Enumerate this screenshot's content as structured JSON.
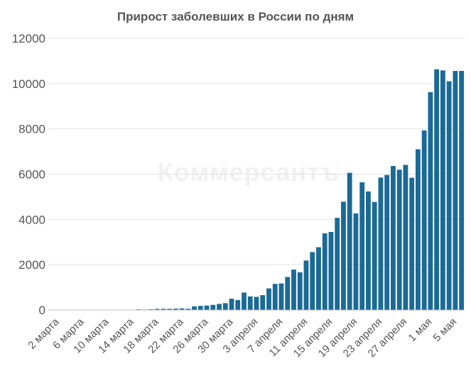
{
  "chart_data": {
    "type": "bar",
    "title": "Прирост заболевших в России по дням",
    "watermark": "Коммерсантъ",
    "xlabel": "",
    "ylabel": "",
    "ylim": [
      0,
      12000
    ],
    "yticks": [
      "0",
      "2000",
      "4000",
      "6000",
      "8000",
      "10000",
      "12000"
    ],
    "grid": true,
    "bar_color": "#1b6a96",
    "x_tick_labels": [
      "2 марта",
      "6 марта",
      "10 марта",
      "14 марта",
      "18 марта",
      "22 марта",
      "26 марта",
      "30 марта",
      "3 апреля",
      "7 апреля",
      "11 апреля",
      "15 апреля",
      "19 апреля",
      "23 апреля",
      "27 апреля",
      "1 мая",
      "5 мая"
    ],
    "categories": [
      "2 марта",
      "3 марта",
      "4 марта",
      "5 марта",
      "6 марта",
      "7 марта",
      "8 марта",
      "9 марта",
      "10 марта",
      "11 марта",
      "12 марта",
      "13 марта",
      "14 марта",
      "15 марта",
      "16 марта",
      "17 марта",
      "18 марта",
      "19 марта",
      "20 марта",
      "21 марта",
      "22 марта",
      "23 марта",
      "24 марта",
      "25 марта",
      "26 марта",
      "27 марта",
      "28 марта",
      "29 марта",
      "30 марта",
      "31 марта",
      "1 апреля",
      "2 апреля",
      "3 апреля",
      "4 апреля",
      "5 апреля",
      "6 апреля",
      "7 апреля",
      "8 апреля",
      "9 апреля",
      "10 апреля",
      "11 апреля",
      "12 апреля",
      "13 апреля",
      "14 апреля",
      "15 апреля",
      "16 апреля",
      "17 апреля",
      "18 апреля",
      "19 апреля",
      "20 апреля",
      "21 апреля",
      "22 апреля",
      "23 апреля",
      "24 апреля",
      "25 апреля",
      "26 апреля",
      "27 апреля",
      "28 апреля",
      "29 апреля",
      "30 апреля",
      "1 мая",
      "2 мая",
      "3 мая",
      "4 мая",
      "5 мая",
      "6 мая",
      "7 мая"
    ],
    "values": [
      1,
      0,
      0,
      1,
      1,
      10,
      0,
      4,
      3,
      8,
      6,
      6,
      11,
      4,
      29,
      21,
      33,
      52,
      54,
      53,
      61,
      71,
      57,
      163,
      182,
      196,
      228,
      270,
      302,
      501,
      440,
      771,
      601,
      582,
      658,
      954,
      1154,
      1175,
      1459,
      1786,
      1667,
      2186,
      2558,
      2774,
      3388,
      3448,
      4070,
      4785,
      6060,
      4268,
      5642,
      5236,
      4774,
      5849,
      5966,
      6361,
      6198,
      6411,
      5841,
      7099,
      7933,
      9623,
      10633,
      10581,
      10102,
      10559,
      10559
    ]
  }
}
